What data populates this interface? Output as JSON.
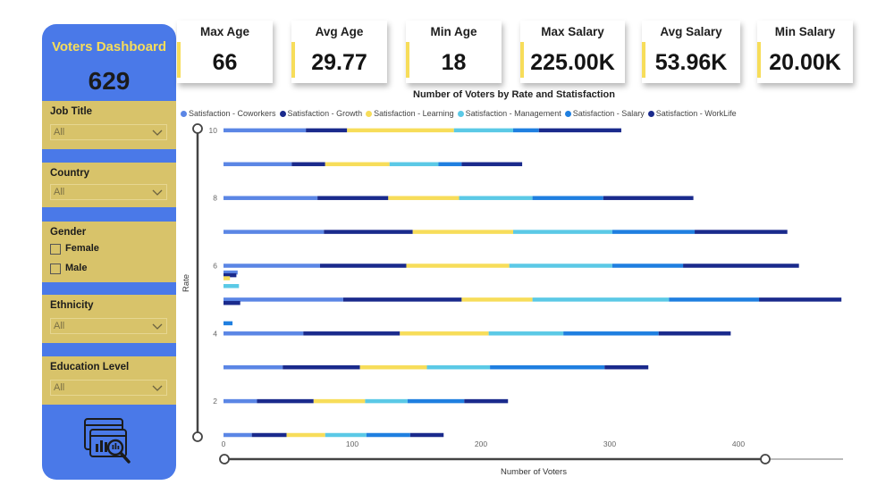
{
  "sidebar": {
    "title": "Voters Dashboard",
    "count": "629",
    "filters": {
      "job_title": {
        "label": "Job Title",
        "value": "All"
      },
      "country": {
        "label": "Country",
        "value": "All"
      },
      "gender": {
        "label": "Gender",
        "options": [
          "Female",
          "Male"
        ]
      },
      "ethnicity": {
        "label": "Ethnicity",
        "value": "All"
      },
      "education": {
        "label": "Education Level",
        "value": "All"
      }
    },
    "logo_icon": "dashboard-analytics-icon"
  },
  "kpis": [
    {
      "label": "Max Age",
      "value": "66"
    },
    {
      "label": "Avg Age",
      "value": "29.77"
    },
    {
      "label": "Min Age",
      "value": "18"
    },
    {
      "label": "Max Salary",
      "value": "225.00K"
    },
    {
      "label": "Avg Salary",
      "value": "53.96K"
    },
    {
      "label": "Min Salary",
      "value": "20.00K"
    }
  ],
  "colors": {
    "sidebar": "#4a79e8",
    "filter_panel": "#d8c36a",
    "accent_yellow": "#f7dd5a"
  },
  "chart_data": {
    "type": "bar",
    "orientation": "horizontal",
    "stacked": true,
    "title": "Number of Voters by Rate and Statisfaction",
    "xlabel": "Number of Voters",
    "ylabel": "Rate",
    "xlim": [
      0,
      480
    ],
    "ylim": [
      0.5,
      10.5
    ],
    "x_ticks": [
      "0",
      "100",
      "200",
      "300",
      "400"
    ],
    "y_ticks": [
      "2",
      "4",
      "6",
      "8",
      "10"
    ],
    "legend_position": "top",
    "series": [
      {
        "name": "Satisfaction - Coworkers",
        "color": "#5b86e5"
      },
      {
        "name": "Satisfaction - Growth",
        "color": "#1a2a8c"
      },
      {
        "name": "Satisfaction - Learning",
        "color": "#f7dd5a"
      },
      {
        "name": "Satisfaction - Management",
        "color": "#5bc9e6"
      },
      {
        "name": "Satisfaction - Salary",
        "color": "#1f7fe0"
      },
      {
        "name": "Satisfaction - WorkLife",
        "color": "#1a2a8c"
      }
    ],
    "rates": [
      10,
      9,
      8,
      7,
      6,
      5,
      4,
      3,
      2,
      1
    ],
    "bars": [
      [
        64,
        32,
        83,
        46,
        20,
        64
      ],
      [
        53,
        26,
        50,
        38,
        18,
        47
      ],
      [
        73,
        55,
        55,
        57,
        55,
        70
      ],
      [
        78,
        69,
        78,
        77,
        64,
        72
      ],
      [
        75,
        67,
        80,
        80,
        55,
        90
      ],
      [
        93,
        92,
        55,
        106,
        70,
        64
      ],
      [
        62,
        75,
        69,
        58,
        74,
        56
      ],
      [
        46,
        60,
        52,
        49,
        89,
        34
      ],
      [
        26,
        44,
        40,
        33,
        44,
        34
      ],
      [
        22,
        27,
        30,
        32,
        34,
        26
      ]
    ],
    "sub_bars": [
      {
        "rate": 5.8,
        "value": 11,
        "series": 0
      },
      {
        "rate": 5.72,
        "value": 10,
        "series": 1
      },
      {
        "rate": 5.63,
        "value": 5,
        "series": 2
      },
      {
        "rate": 5.4,
        "value": 12,
        "series": 3
      },
      {
        "rate": 4.9,
        "value": 13,
        "series": 5
      },
      {
        "rate": 4.3,
        "value": 7,
        "series": 4
      }
    ]
  }
}
